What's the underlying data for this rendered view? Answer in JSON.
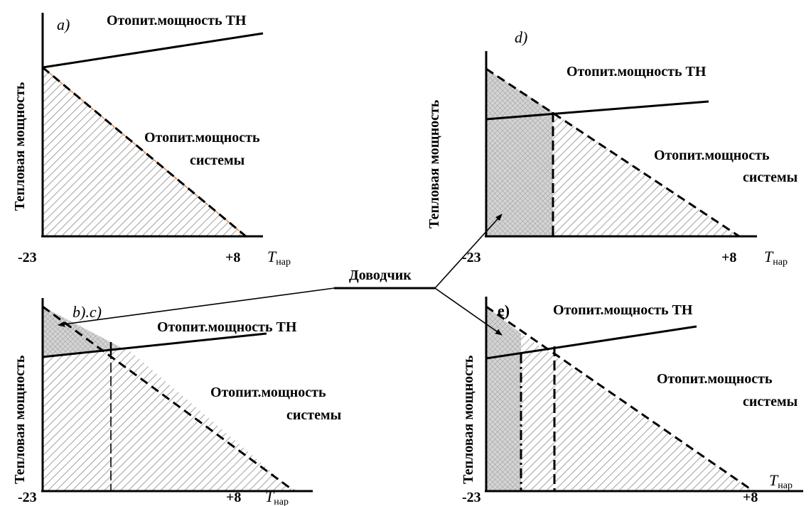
{
  "panels": {
    "a": {
      "tag": "a)",
      "ylabel": "Тепловая  мощность",
      "hp_label": "Отопит.мощность ТН",
      "sys_label_1": "Отопит.мощность",
      "sys_label_2": "системы",
      "x_min": "-23",
      "x_max": "+8",
      "x_var": "T",
      "x_sub": "нар"
    },
    "bc": {
      "tag": "b).c)",
      "ylabel": "Тепловая  мощность",
      "hp_label": "Отопит.мощность ТН",
      "sys_label_1": "Отопит.мощность",
      "sys_label_2": "системы",
      "x_min": "-23",
      "x_max": "+8",
      "x_var": "T",
      "x_sub": "нар"
    },
    "d": {
      "tag": "d)",
      "ylabel": "Тепловая  мощность",
      "hp_label": "Отопит.мощность ТН",
      "sys_label_1": "Отопит.мощность",
      "sys_label_2": "системы",
      "x_min": "-23",
      "x_max": "+8",
      "x_var": "T",
      "x_sub": "нар"
    },
    "e": {
      "tag": "e)",
      "ylabel": "Тепловая  мощность",
      "hp_label": "Отопит.мощность ТН",
      "sys_label_1": "Отопит.мощность",
      "sys_label_2": "системы",
      "x_min": "-23",
      "x_max": "+8",
      "x_var": "T",
      "x_sub": "нар"
    }
  },
  "pointer_label": "Доводчик",
  "colors": {
    "line": "#000000",
    "hatch": "#a8a8a8",
    "crosshatch": "#9a9a9a",
    "accent_dash": "#e07020"
  }
}
